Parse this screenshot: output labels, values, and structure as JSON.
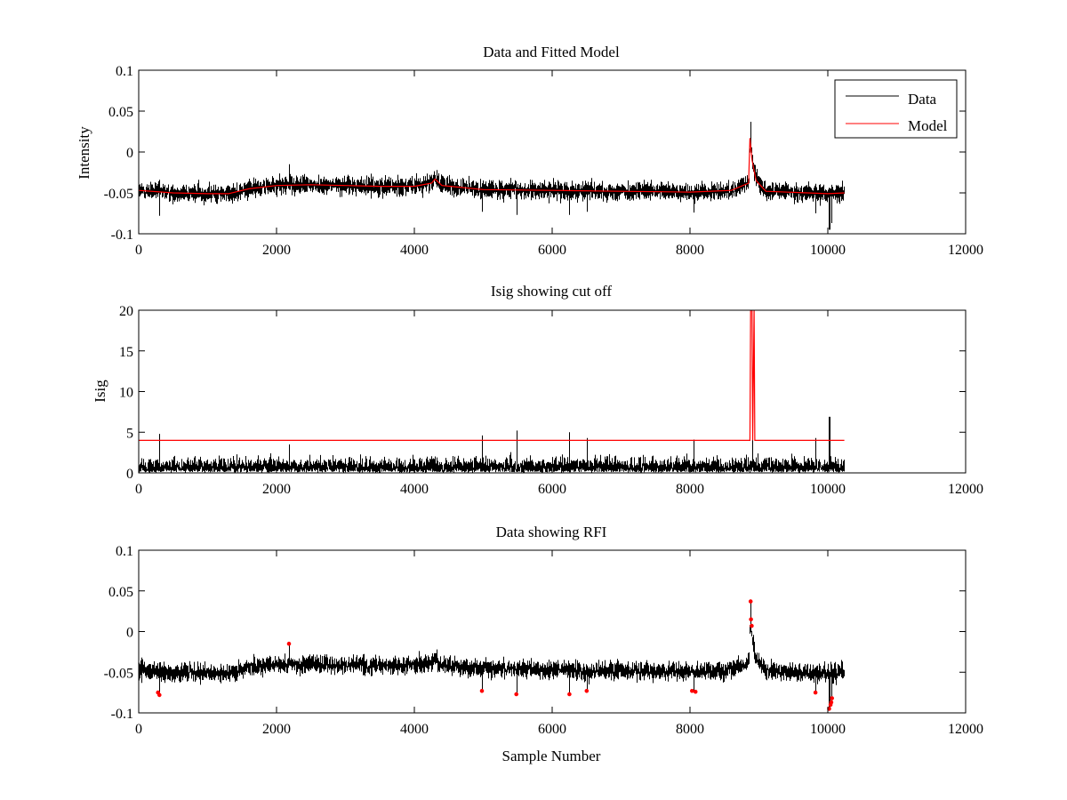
{
  "chart_data": [
    {
      "type": "line",
      "title": "Data and Fitted Model",
      "xlabel": "",
      "ylabel": "Intensity",
      "xlim": [
        0,
        12000
      ],
      "ylim": [
        -0.1,
        0.1
      ],
      "xticks": [
        "0",
        "2000",
        "4000",
        "6000",
        "8000",
        "10000",
        "12000"
      ],
      "yticks": [
        "-0.1",
        "-0.05",
        "0",
        "0.05",
        "0.1"
      ],
      "legend": {
        "placement": "top-right",
        "entries": [
          "Data",
          "Model"
        ]
      },
      "series": [
        {
          "name": "Data",
          "color": "#000000",
          "style": "noise",
          "n_samples": 10240,
          "noise_sigma": 0.0055,
          "x": [
            0,
            500,
            1000,
            1300,
            1600,
            2000,
            2500,
            3000,
            3500,
            4000,
            4250,
            4300,
            4400,
            5000,
            6000,
            7000,
            8000,
            8600,
            8850,
            8870,
            8900,
            8960,
            9100,
            10000,
            10240
          ],
          "values": [
            -0.047,
            -0.05,
            -0.051,
            -0.051,
            -0.045,
            -0.041,
            -0.04,
            -0.041,
            -0.042,
            -0.042,
            -0.038,
            -0.033,
            -0.041,
            -0.046,
            -0.047,
            -0.048,
            -0.049,
            -0.047,
            -0.038,
            0.017,
            -0.01,
            -0.035,
            -0.048,
            -0.051,
            -0.05
          ],
          "spikes": [
            [
              300,
              -0.078
            ],
            [
              2180,
              -0.015
            ],
            [
              4320,
              -0.022
            ],
            [
              4980,
              -0.073
            ],
            [
              5480,
              -0.077
            ],
            [
              6250,
              -0.077
            ],
            [
              6500,
              -0.073
            ],
            [
              8050,
              -0.074
            ],
            [
              8880,
              0.037
            ],
            [
              9820,
              -0.075
            ],
            [
              10020,
              -0.095
            ],
            [
              10050,
              -0.087
            ]
          ]
        },
        {
          "name": "Model",
          "color": "#ff0000",
          "x": [
            0,
            500,
            1000,
            1300,
            1600,
            2000,
            2500,
            3000,
            3500,
            4000,
            4250,
            4300,
            4400,
            5000,
            6000,
            7000,
            8000,
            8600,
            8850,
            8870,
            8900,
            8960,
            9100,
            10000,
            10240
          ],
          "values": [
            -0.047,
            -0.05,
            -0.051,
            -0.051,
            -0.045,
            -0.041,
            -0.04,
            -0.041,
            -0.042,
            -0.042,
            -0.038,
            -0.033,
            -0.041,
            -0.046,
            -0.047,
            -0.048,
            -0.049,
            -0.047,
            -0.038,
            0.017,
            -0.01,
            -0.035,
            -0.048,
            -0.051,
            -0.05
          ]
        }
      ]
    },
    {
      "type": "line",
      "title": "Isig showing cut off",
      "xlabel": "",
      "ylabel": "Isig",
      "xlim": [
        0,
        12000
      ],
      "ylim": [
        0,
        20
      ],
      "xticks": [
        "0",
        "2000",
        "4000",
        "6000",
        "8000",
        "10000",
        "12000"
      ],
      "yticks": [
        "0",
        "5",
        "10",
        "15",
        "20"
      ],
      "series": [
        {
          "name": "Isig",
          "color": "#000000",
          "style": "abs-noise",
          "n_samples": 10240,
          "noise_sigma": 0.8,
          "spikes": [
            [
              300,
              4.8
            ],
            [
              2180,
              3.5
            ],
            [
              4980,
              4.6
            ],
            [
              5480,
              5.2
            ],
            [
              6250,
              5.0
            ],
            [
              6500,
              4.3
            ],
            [
              8050,
              4.1
            ],
            [
              8900,
              4.8
            ],
            [
              9820,
              4.3
            ],
            [
              10020,
              6.9
            ]
          ]
        },
        {
          "name": "Cut off",
          "color": "#ff0000",
          "x": [
            0,
            8870,
            8880,
            8900,
            8910,
            8930,
            8940,
            10240
          ],
          "values": [
            4,
            4,
            20,
            20,
            4,
            20,
            4,
            4
          ]
        }
      ]
    },
    {
      "type": "line",
      "title": "Data showing RFI",
      "xlabel": "Sample Number",
      "ylabel": "",
      "xlim": [
        0,
        12000
      ],
      "ylim": [
        -0.1,
        0.1
      ],
      "xticks": [
        "0",
        "2000",
        "4000",
        "6000",
        "8000",
        "10000",
        "12000"
      ],
      "yticks": [
        "-0.1",
        "-0.05",
        "0",
        "0.05",
        "0.1"
      ],
      "series": [
        {
          "name": "Data",
          "color": "#000000",
          "style": "noise",
          "n_samples": 10240,
          "noise_sigma": 0.0055,
          "x": [
            0,
            500,
            1000,
            1300,
            1600,
            2000,
            2500,
            3000,
            3500,
            4000,
            4250,
            4300,
            4400,
            5000,
            6000,
            7000,
            8000,
            8600,
            8850,
            8870,
            8900,
            8960,
            9100,
            10000,
            10240
          ],
          "values": [
            -0.047,
            -0.05,
            -0.051,
            -0.051,
            -0.045,
            -0.041,
            -0.04,
            -0.041,
            -0.042,
            -0.042,
            -0.038,
            -0.033,
            -0.041,
            -0.046,
            -0.047,
            -0.048,
            -0.049,
            -0.047,
            -0.038,
            0.017,
            -0.01,
            -0.035,
            -0.048,
            -0.051,
            -0.05
          ],
          "spikes": [
            [
              300,
              -0.078
            ],
            [
              2180,
              -0.015
            ],
            [
              4320,
              -0.022
            ],
            [
              4980,
              -0.073
            ],
            [
              5480,
              -0.077
            ],
            [
              6250,
              -0.077
            ],
            [
              6500,
              -0.073
            ],
            [
              8050,
              -0.074
            ],
            [
              8880,
              0.037
            ],
            [
              9820,
              -0.075
            ],
            [
              10020,
              -0.095
            ],
            [
              10050,
              -0.087
            ]
          ]
        },
        {
          "name": "RFI",
          "color": "#ff0000",
          "style": "markers",
          "x": [
            280,
            300,
            2180,
            4980,
            5480,
            6250,
            6500,
            8030,
            8080,
            8880,
            8885,
            8895,
            9820,
            10020,
            10040,
            10050,
            10060
          ],
          "values": [
            -0.075,
            -0.078,
            -0.015,
            -0.073,
            -0.077,
            -0.077,
            -0.073,
            -0.073,
            -0.074,
            0.037,
            0.015,
            0.007,
            -0.075,
            -0.095,
            -0.09,
            -0.087,
            -0.082
          ]
        }
      ]
    }
  ]
}
